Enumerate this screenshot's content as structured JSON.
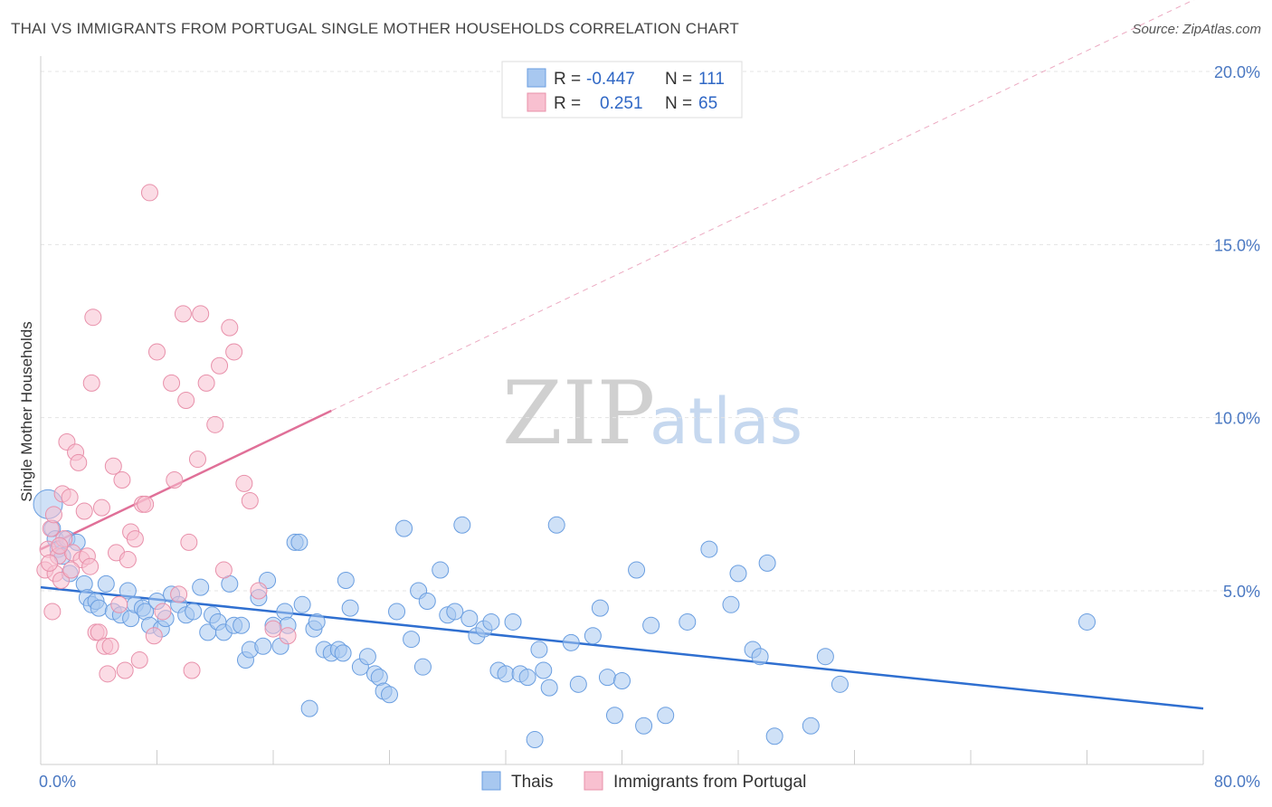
{
  "header": {
    "title": "THAI VS IMMIGRANTS FROM PORTUGAL SINGLE MOTHER HOUSEHOLDS CORRELATION CHART",
    "source": "Source: ZipAtlas.com"
  },
  "legend": {
    "r_label": "R =",
    "n_label": "N =",
    "rows": [
      {
        "r": "-0.447",
        "n": "111",
        "color": "#a8c8f0",
        "stroke": "#6a9ee0"
      },
      {
        "r": "0.251",
        "n": "65",
        "color": "#f8c0d0",
        "stroke": "#e890aa"
      }
    ]
  },
  "watermark": {
    "zip": "ZIP",
    "atlas": "atlas"
  },
  "chart_data": {
    "type": "scatter",
    "title": "THAI VS IMMIGRANTS FROM PORTUGAL SINGLE MOTHER HOUSEHOLDS CORRELATION CHART",
    "xlabel": "",
    "ylabel": "Single Mother Households",
    "xlim": [
      0,
      80
    ],
    "ylim": [
      0,
      21
    ],
    "x_tick_labels": [
      "0.0%",
      "80.0%"
    ],
    "y_ticks": [
      5,
      10,
      15,
      20
    ],
    "y_tick_labels": [
      "5.0%",
      "10.0%",
      "15.0%",
      "20.0%"
    ],
    "grid": true,
    "series": [
      {
        "name": "Thais",
        "color": "#6a9ee0",
        "fill": "#a8c8f0",
        "trend": {
          "x": [
            0,
            80
          ],
          "y": [
            5.1,
            1.6
          ],
          "color": "#2f6fd0"
        },
        "points": [
          [
            0.5,
            7.5
          ],
          [
            0.8,
            6.8
          ],
          [
            1.0,
            6.5
          ],
          [
            1.2,
            6.2
          ],
          [
            1.5,
            6.0
          ],
          [
            1.8,
            6.5
          ],
          [
            2.0,
            5.5
          ],
          [
            2.5,
            6.4
          ],
          [
            3.0,
            5.2
          ],
          [
            3.2,
            4.8
          ],
          [
            3.5,
            4.6
          ],
          [
            3.8,
            4.7
          ],
          [
            4.0,
            4.5
          ],
          [
            4.5,
            5.2
          ],
          [
            5.0,
            4.4
          ],
          [
            5.5,
            4.3
          ],
          [
            6.0,
            5.0
          ],
          [
            6.2,
            4.2
          ],
          [
            6.5,
            4.6
          ],
          [
            7.0,
            4.5
          ],
          [
            7.2,
            4.4
          ],
          [
            7.5,
            4.0
          ],
          [
            8.0,
            4.7
          ],
          [
            8.3,
            3.9
          ],
          [
            8.6,
            4.2
          ],
          [
            9.0,
            4.9
          ],
          [
            9.5,
            4.6
          ],
          [
            10.0,
            4.3
          ],
          [
            10.5,
            4.4
          ],
          [
            11.0,
            5.1
          ],
          [
            11.5,
            3.8
          ],
          [
            11.8,
            4.3
          ],
          [
            12.2,
            4.1
          ],
          [
            12.6,
            3.8
          ],
          [
            13.0,
            5.2
          ],
          [
            13.3,
            4.0
          ],
          [
            13.8,
            4.0
          ],
          [
            14.1,
            3.0
          ],
          [
            14.4,
            3.3
          ],
          [
            15.0,
            4.8
          ],
          [
            15.3,
            3.4
          ],
          [
            15.6,
            5.3
          ],
          [
            16.0,
            4.0
          ],
          [
            16.5,
            3.4
          ],
          [
            16.8,
            4.4
          ],
          [
            17.0,
            4.0
          ],
          [
            17.5,
            6.4
          ],
          [
            17.8,
            6.4
          ],
          [
            18.0,
            4.6
          ],
          [
            18.5,
            1.6
          ],
          [
            18.8,
            3.9
          ],
          [
            19.0,
            4.1
          ],
          [
            19.5,
            3.3
          ],
          [
            20.0,
            3.2
          ],
          [
            20.5,
            3.3
          ],
          [
            20.8,
            3.2
          ],
          [
            21.0,
            5.3
          ],
          [
            21.3,
            4.5
          ],
          [
            22.0,
            2.8
          ],
          [
            22.5,
            3.1
          ],
          [
            23.0,
            2.6
          ],
          [
            23.3,
            2.5
          ],
          [
            23.6,
            2.1
          ],
          [
            24.0,
            2.0
          ],
          [
            24.5,
            4.4
          ],
          [
            25.0,
            6.8
          ],
          [
            25.5,
            3.6
          ],
          [
            26.0,
            5.0
          ],
          [
            26.3,
            2.8
          ],
          [
            26.6,
            4.7
          ],
          [
            27.5,
            5.6
          ],
          [
            28.0,
            4.3
          ],
          [
            28.5,
            4.4
          ],
          [
            29.0,
            6.9
          ],
          [
            29.5,
            4.2
          ],
          [
            30.0,
            3.7
          ],
          [
            30.5,
            3.9
          ],
          [
            31.0,
            4.1
          ],
          [
            31.5,
            2.7
          ],
          [
            32.0,
            2.6
          ],
          [
            32.5,
            4.1
          ],
          [
            33.0,
            2.6
          ],
          [
            33.5,
            2.5
          ],
          [
            34.0,
            0.7
          ],
          [
            34.3,
            3.3
          ],
          [
            34.6,
            2.7
          ],
          [
            35.0,
            2.2
          ],
          [
            35.5,
            6.9
          ],
          [
            36.5,
            3.5
          ],
          [
            37.0,
            2.3
          ],
          [
            38.0,
            3.7
          ],
          [
            38.5,
            4.5
          ],
          [
            39.0,
            2.5
          ],
          [
            39.5,
            1.4
          ],
          [
            40.0,
            2.4
          ],
          [
            41.0,
            5.6
          ],
          [
            41.5,
            1.1
          ],
          [
            42.0,
            4.0
          ],
          [
            43.0,
            1.4
          ],
          [
            44.5,
            4.1
          ],
          [
            46.0,
            6.2
          ],
          [
            47.5,
            4.6
          ],
          [
            48.0,
            5.5
          ],
          [
            49.0,
            3.3
          ],
          [
            49.5,
            3.1
          ],
          [
            50.0,
            5.8
          ],
          [
            50.5,
            0.8
          ],
          [
            53.0,
            1.1
          ],
          [
            54.0,
            3.1
          ],
          [
            55.0,
            2.3
          ],
          [
            72.0,
            4.1
          ]
        ]
      },
      {
        "name": "Immigrants from Portugal",
        "color": "#e890aa",
        "fill": "#f8c0d0",
        "trend": {
          "x": [
            0,
            20
          ],
          "y": [
            6.2,
            10.2
          ],
          "color": "#e07098",
          "dashed_to": [
            80,
            22.2
          ]
        },
        "points": [
          [
            0.3,
            5.6
          ],
          [
            0.5,
            6.2
          ],
          [
            0.7,
            6.8
          ],
          [
            0.9,
            7.2
          ],
          [
            1.0,
            5.5
          ],
          [
            1.2,
            6.0
          ],
          [
            1.4,
            5.3
          ],
          [
            1.5,
            7.8
          ],
          [
            1.6,
            6.5
          ],
          [
            1.8,
            9.3
          ],
          [
            2.0,
            7.7
          ],
          [
            2.2,
            6.1
          ],
          [
            2.4,
            9.0
          ],
          [
            2.6,
            8.7
          ],
          [
            2.8,
            5.9
          ],
          [
            3.0,
            7.3
          ],
          [
            3.2,
            6.0
          ],
          [
            3.4,
            5.7
          ],
          [
            3.5,
            11.0
          ],
          [
            3.6,
            12.9
          ],
          [
            3.8,
            3.8
          ],
          [
            4.0,
            3.8
          ],
          [
            4.2,
            7.4
          ],
          [
            4.4,
            3.4
          ],
          [
            4.6,
            2.6
          ],
          [
            4.8,
            3.4
          ],
          [
            5.0,
            8.6
          ],
          [
            5.2,
            6.1
          ],
          [
            5.4,
            4.6
          ],
          [
            5.6,
            8.2
          ],
          [
            5.8,
            2.7
          ],
          [
            6.0,
            5.9
          ],
          [
            6.2,
            6.7
          ],
          [
            6.5,
            6.5
          ],
          [
            6.8,
            3.0
          ],
          [
            7.0,
            7.5
          ],
          [
            7.2,
            7.5
          ],
          [
            7.5,
            16.5
          ],
          [
            7.8,
            3.7
          ],
          [
            8.0,
            11.9
          ],
          [
            8.4,
            4.4
          ],
          [
            9.0,
            11.0
          ],
          [
            9.2,
            8.2
          ],
          [
            9.5,
            4.9
          ],
          [
            9.8,
            13.0
          ],
          [
            10.0,
            10.5
          ],
          [
            10.2,
            6.4
          ],
          [
            10.4,
            2.7
          ],
          [
            10.8,
            8.8
          ],
          [
            11.0,
            13.0
          ],
          [
            11.4,
            11.0
          ],
          [
            12.0,
            9.8
          ],
          [
            12.3,
            11.5
          ],
          [
            12.6,
            5.6
          ],
          [
            13.0,
            12.6
          ],
          [
            13.3,
            11.9
          ],
          [
            14.0,
            8.1
          ],
          [
            14.4,
            7.6
          ],
          [
            15.0,
            5.0
          ],
          [
            16.0,
            3.9
          ],
          [
            17.0,
            3.7
          ],
          [
            1.3,
            6.3
          ],
          [
            2.1,
            5.6
          ],
          [
            0.6,
            5.8
          ],
          [
            0.8,
            4.4
          ]
        ]
      }
    ]
  }
}
